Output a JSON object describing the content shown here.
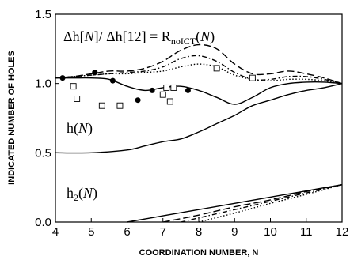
{
  "chart_data": {
    "type": "line",
    "title": "",
    "xlabel": "COORDINATION NUMBER, N",
    "ylabel": "INDICATED NUMBER OF HOLES",
    "xlim": [
      4,
      12
    ],
    "ylim": [
      0,
      1.5
    ],
    "x_ticks": [
      4,
      5,
      6,
      7,
      8,
      9,
      10,
      11,
      12
    ],
    "y_ticks": [
      0.0,
      0.5,
      1.0,
      1.5
    ],
    "x_tick_labels": [
      "4",
      "5",
      "6",
      "7",
      "8",
      "9",
      "10",
      "11",
      "12"
    ],
    "y_tick_labels": [
      "0.0",
      "0.5",
      "1.0",
      "1.5"
    ],
    "grid": false,
    "annotations": {
      "ratio": {
        "prefix": "Δh[",
        "n1": "N",
        "mid": "]/ Δh[12] = R",
        "sub": "noICT",
        "open": "(",
        "n2": "N",
        "close": ")"
      },
      "h": {
        "base": "h(",
        "n": "N",
        "close": ")"
      },
      "h2": {
        "base": "h",
        "sub": "2",
        "open": "(",
        "n": "N",
        "close": ")"
      }
    },
    "series": [
      {
        "style": "solid",
        "x": [
          4,
          4.5,
          5,
          5.5,
          6,
          6.5,
          7,
          7.5,
          8,
          8.5,
          9,
          9.5,
          10,
          10.5,
          11,
          11.5,
          12
        ],
        "y": [
          1.04,
          1.04,
          1.04,
          1.03,
          0.98,
          0.95,
          0.97,
          0.98,
          0.95,
          0.9,
          0.85,
          0.9,
          0.97,
          1.0,
          1.01,
          1.01,
          1.0
        ]
      },
      {
        "style": "long-dash",
        "x": [
          4,
          4.5,
          5,
          5.5,
          6,
          6.5,
          7,
          7.5,
          8,
          8.5,
          9,
          9.5,
          10,
          10.5,
          11,
          11.5,
          12
        ],
        "y": [
          1.04,
          1.05,
          1.07,
          1.09,
          1.09,
          1.11,
          1.16,
          1.24,
          1.28,
          1.25,
          1.14,
          1.07,
          1.07,
          1.09,
          1.07,
          1.04,
          1.0
        ]
      },
      {
        "style": "dash-dot",
        "x": [
          4,
          4.5,
          5,
          5.5,
          6,
          6.5,
          7,
          7.5,
          8,
          8.5,
          9,
          9.5,
          10,
          10.5,
          11,
          11.5,
          12
        ],
        "y": [
          1.04,
          1.05,
          1.06,
          1.07,
          1.08,
          1.09,
          1.12,
          1.18,
          1.2,
          1.16,
          1.08,
          1.03,
          1.03,
          1.05,
          1.05,
          1.03,
          1.0
        ]
      },
      {
        "style": "dotted",
        "x": [
          4,
          4.5,
          5,
          5.5,
          6,
          6.5,
          7,
          7.5,
          8,
          8.5,
          9,
          9.5,
          10,
          10.5,
          11,
          11.5,
          12
        ],
        "y": [
          1.04,
          1.05,
          1.06,
          1.07,
          1.07,
          1.08,
          1.09,
          1.12,
          1.14,
          1.12,
          1.06,
          1.03,
          1.02,
          1.03,
          1.03,
          1.02,
          1.0
        ]
      },
      {
        "style": "solid",
        "x": [
          4,
          5,
          6,
          6.5,
          7,
          7.5,
          8,
          8.5,
          9,
          9.5,
          10,
          10.5,
          11,
          11.5,
          12
        ],
        "y": [
          0.5,
          0.5,
          0.52,
          0.55,
          0.58,
          0.6,
          0.65,
          0.71,
          0.77,
          0.84,
          0.88,
          0.92,
          0.95,
          0.97,
          1.0
        ]
      },
      {
        "style": "solid",
        "x": [
          6,
          7,
          8,
          9,
          10,
          11,
          12
        ],
        "y": [
          0.0,
          0.045,
          0.09,
          0.135,
          0.18,
          0.225,
          0.27
        ]
      },
      {
        "style": "long-dash",
        "x": [
          7,
          8,
          9,
          10,
          11,
          12
        ],
        "y": [
          0.0,
          0.05,
          0.11,
          0.16,
          0.22,
          0.27
        ]
      },
      {
        "style": "dash-dot",
        "x": [
          7.5,
          8.5,
          9.5,
          10.5,
          11.5,
          12
        ],
        "y": [
          0.0,
          0.06,
          0.12,
          0.18,
          0.24,
          0.27
        ]
      },
      {
        "style": "dotted",
        "x": [
          8,
          9,
          10,
          11,
          12
        ],
        "y": [
          0.0,
          0.065,
          0.135,
          0.2,
          0.27
        ]
      }
    ],
    "markers": [
      {
        "shape": "filled-circle",
        "points": [
          [
            4.2,
            1.04
          ],
          [
            5.1,
            1.08
          ],
          [
            5.6,
            1.02
          ],
          [
            6.3,
            0.88
          ],
          [
            6.7,
            0.95
          ],
          [
            7.1,
            0.97
          ],
          [
            7.7,
            0.95
          ]
        ]
      },
      {
        "shape": "open-square",
        "points": [
          [
            4.5,
            0.98
          ],
          [
            4.6,
            0.89
          ],
          [
            5.3,
            0.84
          ],
          [
            5.8,
            0.84
          ],
          [
            7.0,
            0.92
          ],
          [
            7.1,
            0.97
          ],
          [
            7.2,
            0.87
          ],
          [
            7.3,
            0.97
          ],
          [
            8.5,
            1.11
          ],
          [
            9.5,
            1.04
          ]
        ]
      }
    ]
  }
}
